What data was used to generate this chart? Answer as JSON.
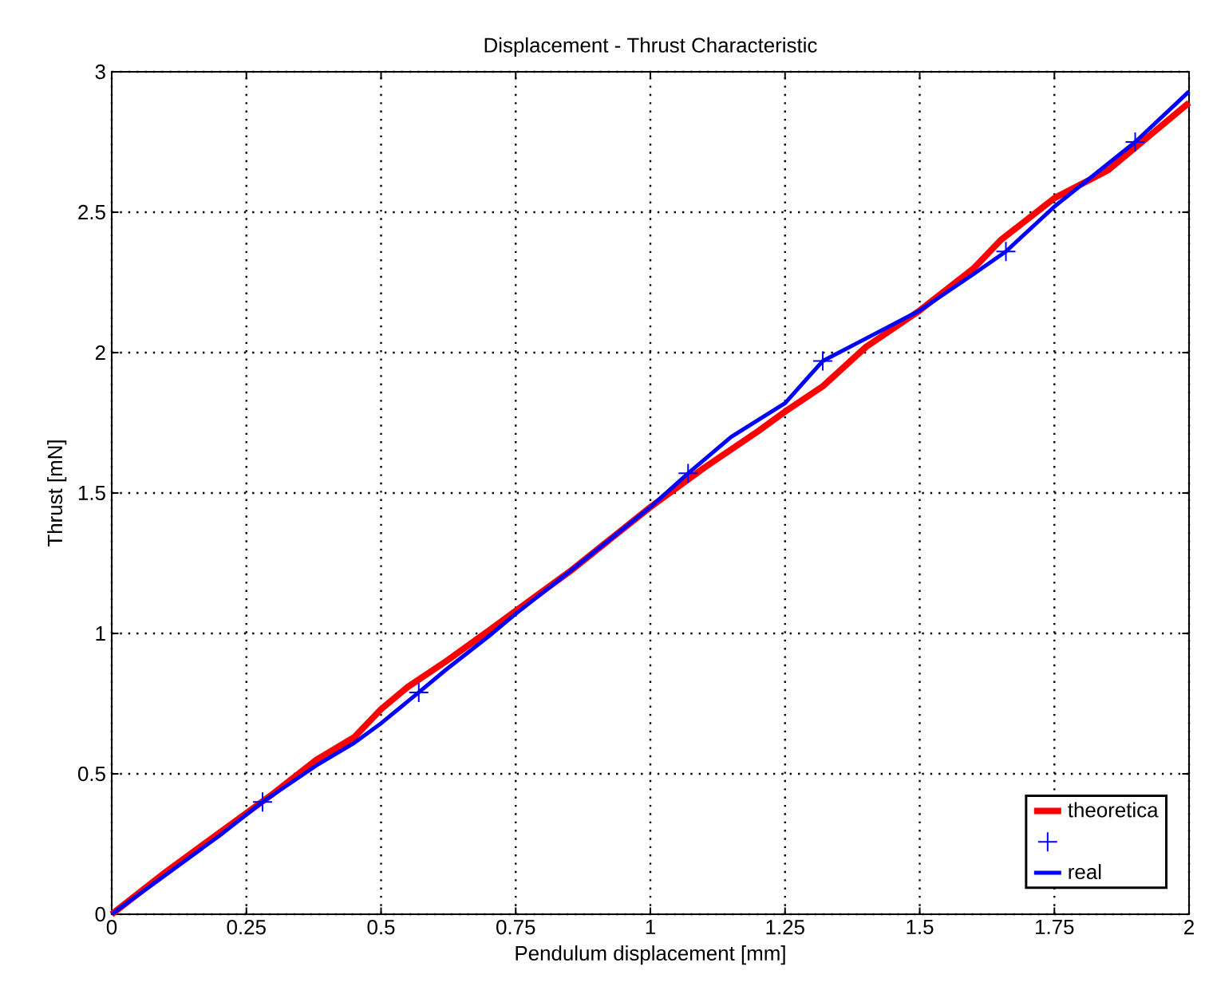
{
  "chart_data": {
    "type": "line",
    "title": "Displacement - Thrust Characteristic",
    "xlabel": "Pendulum displacement [mm]",
    "ylabel": "Thrust [mN]",
    "xlim": [
      0,
      2
    ],
    "ylim": [
      0,
      3
    ],
    "xticks": [
      0,
      0.25,
      0.5,
      0.75,
      1,
      1.25,
      1.5,
      1.75,
      2
    ],
    "yticks": [
      0,
      0.5,
      1,
      1.5,
      2,
      2.5,
      3
    ],
    "grid": true,
    "legend": "bottom right",
    "series": [
      {
        "name": "theoretica",
        "color": "#ff0000",
        "x": [
          0,
          0.1,
          0.2,
          0.3,
          0.38,
          0.45,
          0.5,
          0.55,
          0.62,
          0.7,
          0.75,
          0.85,
          1.0,
          1.1,
          1.2,
          1.25,
          1.32,
          1.4,
          1.5,
          1.6,
          1.65,
          1.75,
          1.85,
          2.0
        ],
        "values": [
          0,
          0.15,
          0.29,
          0.43,
          0.55,
          0.63,
          0.73,
          0.81,
          0.9,
          1.01,
          1.08,
          1.22,
          1.45,
          1.59,
          1.72,
          1.79,
          1.88,
          2.02,
          2.15,
          2.3,
          2.4,
          2.55,
          2.65,
          2.89
        ]
      },
      {
        "type": "scatter",
        "marker": "cross",
        "color": "#0000ff",
        "x": [
          0.28,
          0.57,
          1.07,
          1.32,
          1.66,
          1.9
        ],
        "values": [
          0.4,
          0.79,
          1.57,
          1.97,
          2.36,
          2.75
        ]
      },
      {
        "name": "real",
        "color": "#0000ff",
        "x": [
          0,
          0.1,
          0.2,
          0.28,
          0.38,
          0.45,
          0.5,
          0.57,
          0.62,
          0.7,
          0.75,
          0.85,
          1.0,
          1.07,
          1.15,
          1.2,
          1.25,
          1.32,
          1.4,
          1.5,
          1.6,
          1.66,
          1.75,
          1.9,
          2.0
        ],
        "values": [
          0,
          0.14,
          0.28,
          0.4,
          0.53,
          0.61,
          0.68,
          0.79,
          0.87,
          0.99,
          1.07,
          1.22,
          1.45,
          1.57,
          1.7,
          1.76,
          1.82,
          1.97,
          2.05,
          2.15,
          2.28,
          2.36,
          2.52,
          2.75,
          2.93
        ]
      }
    ]
  }
}
